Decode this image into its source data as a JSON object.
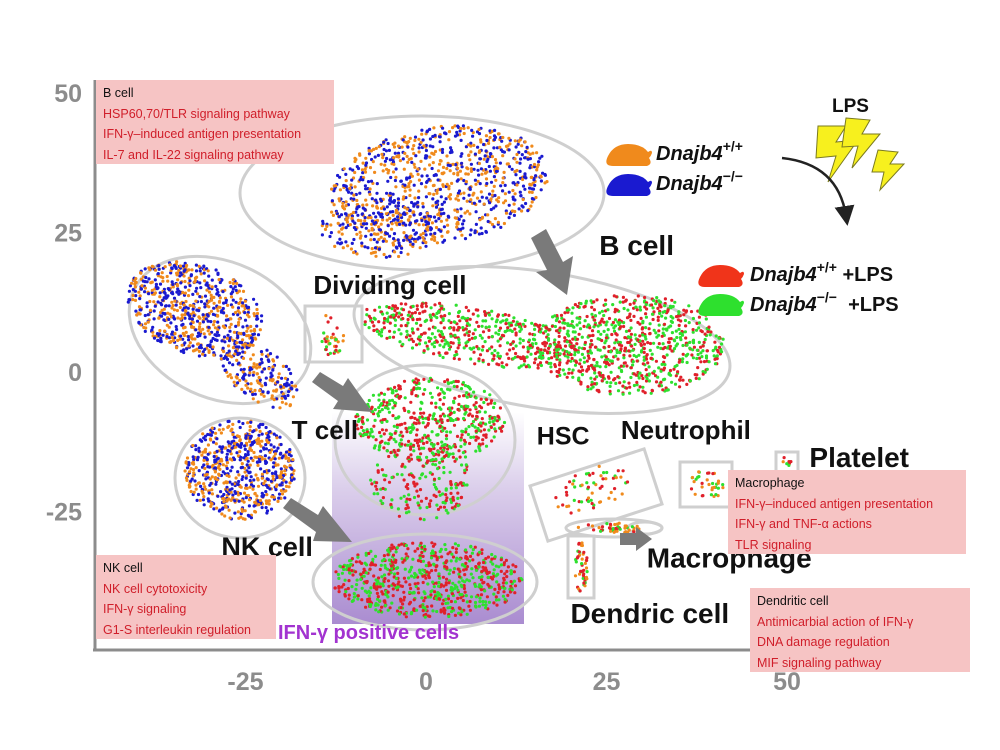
{
  "chart_data": {
    "type": "scatter",
    "title": "",
    "xlabel": "",
    "ylabel": "",
    "xlim": [
      -46,
      56
    ],
    "ylim": [
      -50,
      53
    ],
    "x_ticks": [
      -25,
      0,
      25,
      50
    ],
    "y_ticks": [
      50,
      25,
      0,
      -25
    ],
    "series": [
      {
        "name": "Dnajb4+/+",
        "color": "#f08a1c"
      },
      {
        "name": "Dnajb4−/−",
        "color": "#1a1ad0"
      },
      {
        "name": "Dnajb4+/+ +LPS",
        "color": "#e0202a"
      },
      {
        "name": "Dnajb4−/− +LPS",
        "color": "#2ee02e"
      }
    ],
    "cluster_labels": [
      {
        "text": "B cell",
        "x": 24,
        "y": 21
      },
      {
        "text": "Dividing cell",
        "x": -5,
        "y": 14
      },
      {
        "text": "T cell",
        "x": -14,
        "y": -12
      },
      {
        "text": "NK cell",
        "x": -22,
        "y": -33
      },
      {
        "text": "HSC",
        "x": 19,
        "y": -13
      },
      {
        "text": "Neutrophil",
        "x": 36,
        "y": -12
      },
      {
        "text": "Platelet",
        "x": 60,
        "y": -17
      },
      {
        "text": "Macrophage",
        "x": 42,
        "y": -35
      },
      {
        "text": "Dendric cell",
        "x": 31,
        "y": -45
      }
    ]
  },
  "legend": {
    "lps": "LPS",
    "gene": "Dnajb4",
    "wt_sup": "+/+",
    "ko_sup": "−/−",
    "lps_suffix": "+LPS"
  },
  "ifn_label": "IFN-γ positive cells",
  "annotations": {
    "bcell": {
      "title": "B cell",
      "items": [
        "HSP60,70/TLR signaling pathway",
        "IFN-γ–induced antigen presentation",
        "IL-7 and IL-22 signaling pathway"
      ]
    },
    "nkcell": {
      "title": "NK cell",
      "items": [
        "NK cell cytotoxicity",
        "IFN-γ signaling",
        "G1-S interleukin regulation"
      ]
    },
    "macrophage": {
      "title": "Macrophage",
      "items": [
        "IFN-γ–induced antigen presentation",
        "IFN-γ and TNF-α actions",
        "TLR signaling"
      ]
    },
    "dendritic": {
      "title": "Dendritic cell",
      "items": [
        "Antimicarbial action of IFN-γ",
        "DNA damage regulation",
        "MIF signaling pathway"
      ]
    }
  },
  "colors": {
    "orange": "#f08a1c",
    "blue": "#1a1ad0",
    "red": "#e0202a",
    "green": "#2ee02e",
    "axis": "#8c8c8c",
    "annotation_bg": "#f6c4c4",
    "annotation_text": "#d01e2a",
    "ifn_text": "#a233d0",
    "ifn_gradient": "#9b78c8"
  }
}
